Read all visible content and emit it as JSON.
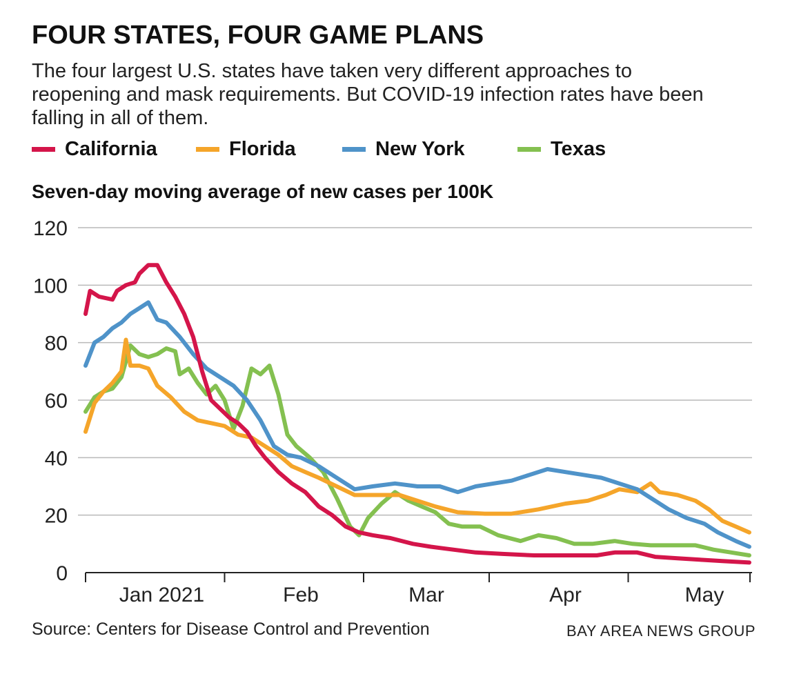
{
  "header": {
    "title": "FOUR STATES, FOUR GAME PLANS",
    "subtitle": "The four largest U.S. states have taken very different approaches to reopening and mask requirements. But COVID-19 infection rates have been falling in all of them."
  },
  "footer": {
    "source": "Source: Centers for Disease Control and Prevention",
    "credit": "BAY AREA NEWS GROUP"
  },
  "chart_data": {
    "type": "line",
    "title": "Seven-day moving average of new cases per 100K",
    "ylim": [
      0,
      120
    ],
    "y_ticks": [
      "0",
      "20",
      "40",
      "60",
      "80",
      "100",
      "120"
    ],
    "x_ticks": [
      "Jan 2021",
      "Feb",
      "Mar",
      "Apr",
      "May"
    ],
    "xlim": [
      "2020-12-15",
      "2021-05-12"
    ],
    "grid": true,
    "legend_position": "top",
    "series": [
      {
        "name": "California",
        "color": "#d4154a",
        "points": [
          [
            "2020-12-15",
            90
          ],
          [
            "2020-12-16",
            98
          ],
          [
            "2020-12-18",
            96
          ],
          [
            "2020-12-21",
            95
          ],
          [
            "2020-12-22",
            98
          ],
          [
            "2020-12-24",
            100
          ],
          [
            "2020-12-26",
            101
          ],
          [
            "2020-12-27",
            104
          ],
          [
            "2020-12-29",
            107
          ],
          [
            "2020-12-31",
            107
          ],
          [
            "2021-01-02",
            101
          ],
          [
            "2021-01-04",
            96
          ],
          [
            "2021-01-06",
            90
          ],
          [
            "2021-01-08",
            82
          ],
          [
            "2021-01-10",
            70
          ],
          [
            "2021-01-12",
            60
          ],
          [
            "2021-01-14",
            57
          ],
          [
            "2021-01-16",
            54
          ],
          [
            "2021-01-18",
            52
          ],
          [
            "2021-01-20",
            49
          ],
          [
            "2021-01-22",
            44
          ],
          [
            "2021-01-24",
            40
          ],
          [
            "2021-01-27",
            35
          ],
          [
            "2021-01-30",
            31
          ],
          [
            "2021-02-02",
            28
          ],
          [
            "2021-02-05",
            23
          ],
          [
            "2021-02-08",
            20
          ],
          [
            "2021-02-11",
            16
          ],
          [
            "2021-02-14",
            14
          ],
          [
            "2021-02-17",
            13
          ],
          [
            "2021-02-21",
            12
          ],
          [
            "2021-02-26",
            10
          ],
          [
            "2021-03-02",
            9
          ],
          [
            "2021-03-07",
            8
          ],
          [
            "2021-03-12",
            7
          ],
          [
            "2021-03-18",
            6.5
          ],
          [
            "2021-03-25",
            6
          ],
          [
            "2021-04-01",
            6
          ],
          [
            "2021-04-08",
            6
          ],
          [
            "2021-04-12",
            7
          ],
          [
            "2021-04-17",
            7
          ],
          [
            "2021-04-21",
            5.5
          ],
          [
            "2021-04-26",
            5
          ],
          [
            "2021-05-01",
            4.5
          ],
          [
            "2021-05-06",
            4
          ],
          [
            "2021-05-12",
            3.5
          ]
        ]
      },
      {
        "name": "Florida",
        "color": "#f5a52a",
        "points": [
          [
            "2020-12-15",
            49
          ],
          [
            "2020-12-17",
            59
          ],
          [
            "2020-12-19",
            63
          ],
          [
            "2020-12-21",
            66
          ],
          [
            "2020-12-23",
            70
          ],
          [
            "2020-12-24",
            81
          ],
          [
            "2020-12-25",
            72
          ],
          [
            "2020-12-27",
            72
          ],
          [
            "2020-12-29",
            71
          ],
          [
            "2020-12-31",
            65
          ],
          [
            "2021-01-03",
            61
          ],
          [
            "2021-01-06",
            56
          ],
          [
            "2021-01-09",
            53
          ],
          [
            "2021-01-12",
            52
          ],
          [
            "2021-01-15",
            51
          ],
          [
            "2021-01-18",
            48
          ],
          [
            "2021-01-21",
            47
          ],
          [
            "2021-01-24",
            44
          ],
          [
            "2021-01-27",
            41
          ],
          [
            "2021-01-30",
            37
          ],
          [
            "2021-02-02",
            35
          ],
          [
            "2021-02-05",
            33
          ],
          [
            "2021-02-09",
            30
          ],
          [
            "2021-02-13",
            27
          ],
          [
            "2021-02-18",
            27
          ],
          [
            "2021-02-23",
            27
          ],
          [
            "2021-02-27",
            25
          ],
          [
            "2021-03-03",
            23
          ],
          [
            "2021-03-08",
            21
          ],
          [
            "2021-03-14",
            20.5
          ],
          [
            "2021-03-20",
            20.5
          ],
          [
            "2021-03-26",
            22
          ],
          [
            "2021-04-01",
            24
          ],
          [
            "2021-04-06",
            25
          ],
          [
            "2021-04-10",
            27
          ],
          [
            "2021-04-13",
            29
          ],
          [
            "2021-04-17",
            28
          ],
          [
            "2021-04-20",
            31
          ],
          [
            "2021-04-22",
            28
          ],
          [
            "2021-04-26",
            27
          ],
          [
            "2021-04-30",
            25
          ],
          [
            "2021-05-03",
            22
          ],
          [
            "2021-05-06",
            18
          ],
          [
            "2021-05-09",
            16
          ],
          [
            "2021-05-12",
            14
          ]
        ]
      },
      {
        "name": "New York",
        "color": "#4f93c9",
        "points": [
          [
            "2020-12-15",
            72
          ],
          [
            "2020-12-17",
            80
          ],
          [
            "2020-12-19",
            82
          ],
          [
            "2020-12-21",
            85
          ],
          [
            "2020-12-23",
            87
          ],
          [
            "2020-12-25",
            90
          ],
          [
            "2020-12-27",
            92
          ],
          [
            "2020-12-29",
            94
          ],
          [
            "2020-12-31",
            88
          ],
          [
            "2021-01-02",
            87
          ],
          [
            "2021-01-05",
            82
          ],
          [
            "2021-01-08",
            76
          ],
          [
            "2021-01-11",
            71
          ],
          [
            "2021-01-14",
            68
          ],
          [
            "2021-01-17",
            65
          ],
          [
            "2021-01-20",
            60
          ],
          [
            "2021-01-23",
            53
          ],
          [
            "2021-01-26",
            44
          ],
          [
            "2021-01-29",
            41
          ],
          [
            "2021-02-01",
            40
          ],
          [
            "2021-02-05",
            37
          ],
          [
            "2021-02-09",
            33
          ],
          [
            "2021-02-13",
            29
          ],
          [
            "2021-02-17",
            30
          ],
          [
            "2021-02-22",
            31
          ],
          [
            "2021-02-27",
            30
          ],
          [
            "2021-03-04",
            30
          ],
          [
            "2021-03-08",
            28
          ],
          [
            "2021-03-12",
            30
          ],
          [
            "2021-03-16",
            31
          ],
          [
            "2021-03-20",
            32
          ],
          [
            "2021-03-24",
            34
          ],
          [
            "2021-03-28",
            36
          ],
          [
            "2021-04-01",
            35
          ],
          [
            "2021-04-05",
            34
          ],
          [
            "2021-04-09",
            33
          ],
          [
            "2021-04-13",
            31
          ],
          [
            "2021-04-17",
            29
          ],
          [
            "2021-04-21",
            25
          ],
          [
            "2021-04-24",
            22
          ],
          [
            "2021-04-28",
            19
          ],
          [
            "2021-05-02",
            17
          ],
          [
            "2021-05-05",
            14
          ],
          [
            "2021-05-09",
            11
          ],
          [
            "2021-05-12",
            9
          ]
        ]
      },
      {
        "name": "Texas",
        "color": "#84c050",
        "points": [
          [
            "2020-12-15",
            56
          ],
          [
            "2020-12-17",
            61
          ],
          [
            "2020-12-19",
            63
          ],
          [
            "2020-12-21",
            64
          ],
          [
            "2020-12-23",
            68
          ],
          [
            "2020-12-25",
            79
          ],
          [
            "2020-12-27",
            76
          ],
          [
            "2020-12-29",
            75
          ],
          [
            "2020-12-31",
            76
          ],
          [
            "2021-01-02",
            78
          ],
          [
            "2021-01-04",
            77
          ],
          [
            "2021-01-05",
            69
          ],
          [
            "2021-01-07",
            71
          ],
          [
            "2021-01-09",
            66
          ],
          [
            "2021-01-11",
            62
          ],
          [
            "2021-01-13",
            65
          ],
          [
            "2021-01-15",
            60
          ],
          [
            "2021-01-17",
            50
          ],
          [
            "2021-01-19",
            58
          ],
          [
            "2021-01-21",
            71
          ],
          [
            "2021-01-23",
            69
          ],
          [
            "2021-01-25",
            72
          ],
          [
            "2021-01-27",
            62
          ],
          [
            "2021-01-29",
            48
          ],
          [
            "2021-01-31",
            44
          ],
          [
            "2021-02-03",
            40
          ],
          [
            "2021-02-06",
            35
          ],
          [
            "2021-02-09",
            26
          ],
          [
            "2021-02-12",
            16
          ],
          [
            "2021-02-14",
            13
          ],
          [
            "2021-02-16",
            19
          ],
          [
            "2021-02-19",
            24
          ],
          [
            "2021-02-22",
            28
          ],
          [
            "2021-02-25",
            25
          ],
          [
            "2021-02-28",
            23
          ],
          [
            "2021-03-03",
            21
          ],
          [
            "2021-03-06",
            17
          ],
          [
            "2021-03-09",
            16
          ],
          [
            "2021-03-13",
            16
          ],
          [
            "2021-03-17",
            13
          ],
          [
            "2021-03-22",
            11
          ],
          [
            "2021-03-26",
            13
          ],
          [
            "2021-03-30",
            12
          ],
          [
            "2021-04-03",
            10
          ],
          [
            "2021-04-07",
            10
          ],
          [
            "2021-04-12",
            11
          ],
          [
            "2021-04-16",
            10
          ],
          [
            "2021-04-20",
            9.5
          ],
          [
            "2021-04-25",
            9.5
          ],
          [
            "2021-04-30",
            9.5
          ],
          [
            "2021-05-04",
            8
          ],
          [
            "2021-05-08",
            7
          ],
          [
            "2021-05-12",
            6
          ]
        ]
      }
    ]
  }
}
